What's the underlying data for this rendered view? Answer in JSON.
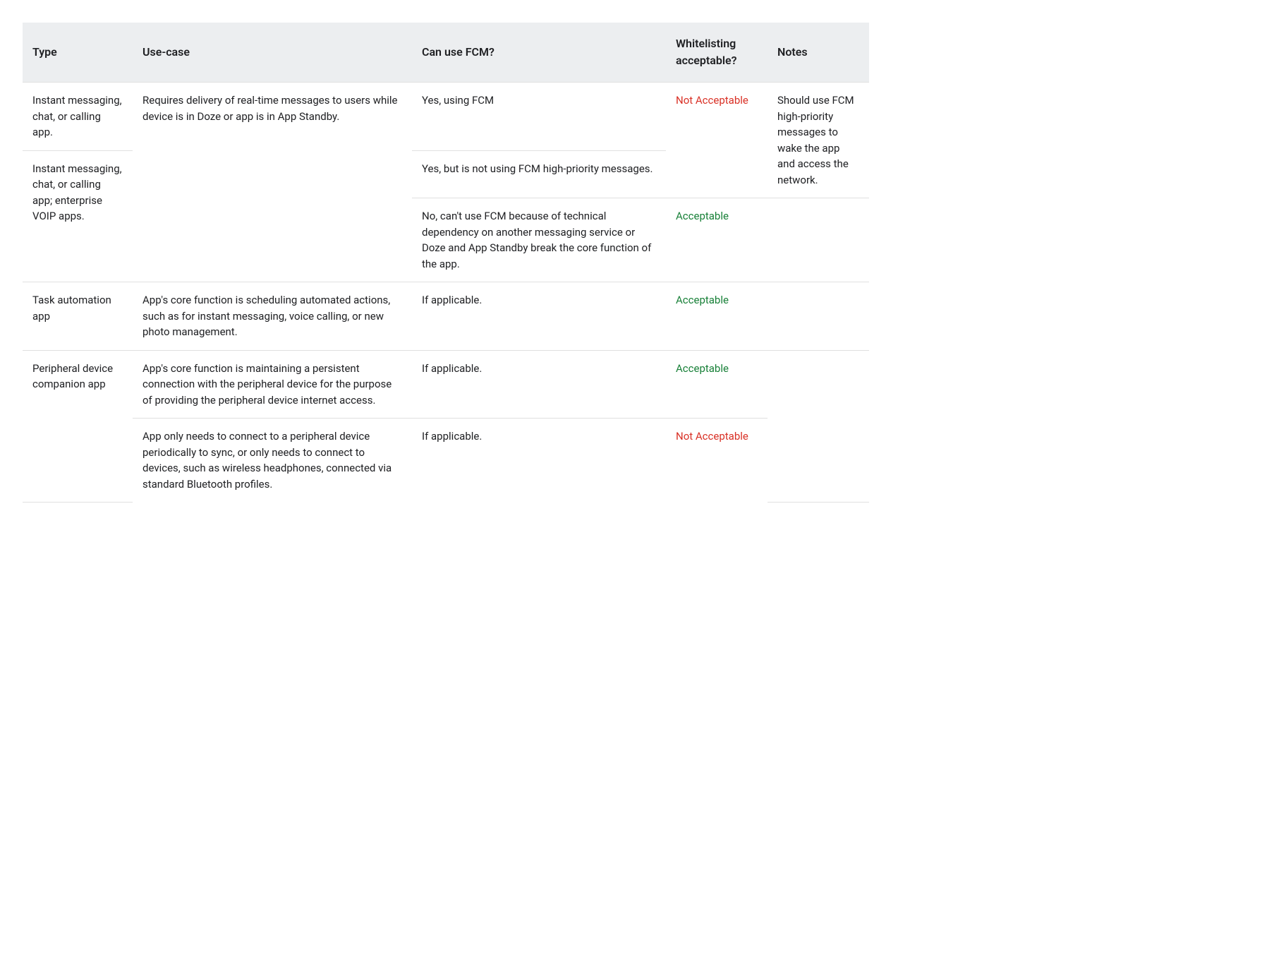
{
  "colors": {
    "header_bg": "#eceef0",
    "border": "#e0e0e0",
    "text": "#202124",
    "acceptable": "#188038",
    "not_acceptable": "#d93025",
    "background": "#ffffff"
  },
  "table": {
    "columns": [
      {
        "key": "type",
        "label": "Type",
        "width_pct": 13
      },
      {
        "key": "usecase",
        "label": "Use-case",
        "width_pct": 33
      },
      {
        "key": "fcm",
        "label": "Can use FCM?",
        "width_pct": 30
      },
      {
        "key": "whitelist",
        "label": "Whitelisting acceptable?",
        "width_pct": 12
      },
      {
        "key": "notes",
        "label": "Notes",
        "width_pct": 12
      }
    ],
    "rows": {
      "r0": {
        "type": "Instant messaging, chat, or calling app.",
        "fcm": "Yes, using FCM",
        "whitelist": "Not Acceptable",
        "whitelist_status": "not-acceptable"
      },
      "r1": {
        "usecase": "Requires delivery of real-time messages to users while device is in Doze or app is in App Standby.",
        "fcm": "Yes, but is not using FCM high-priority messages.",
        "notes": "Should use FCM high-priority messages to wake the app and access the network."
      },
      "r2": {
        "type": "Instant messaging, chat, or calling app; enterprise VOIP apps.",
        "fcm": "No, can't use FCM because of technical dependency on another messaging service or Doze and App Standby break the core function of the app.",
        "whitelist": "Acceptable",
        "whitelist_status": "acceptable"
      },
      "r3": {
        "type": "Task automation app",
        "usecase": "App's core function is scheduling automated actions, such as for instant messaging, voice calling, or new photo management.",
        "fcm": "If applicable.",
        "whitelist": "Acceptable",
        "whitelist_status": "acceptable"
      },
      "r4": {
        "type": "Peripheral device companion app",
        "usecase": "App's core function is maintaining a persistent connection with the peripheral device for the purpose of providing the peripheral device internet access.",
        "fcm": "If applicable.",
        "whitelist": "Acceptable",
        "whitelist_status": "acceptable"
      },
      "r5": {
        "usecase": "App only needs to connect to a peripheral device periodically to sync, or only needs to connect to devices, such as wireless headphones, connected via standard Bluetooth profiles.",
        "fcm": "If applicable.",
        "whitelist": "Not Acceptable",
        "whitelist_status": "not-acceptable"
      }
    }
  }
}
